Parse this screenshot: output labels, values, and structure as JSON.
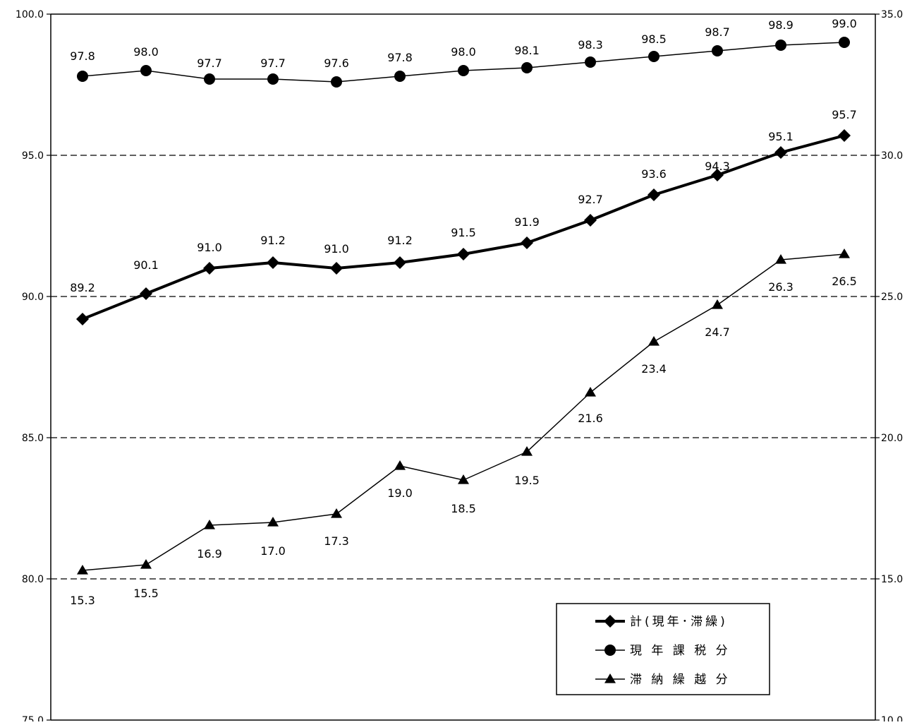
{
  "chart_data": {
    "type": "line",
    "title": "",
    "xlabel": "",
    "ylabel": "",
    "categories": [
      "",
      "",
      "",
      "",
      "",
      "",
      "",
      "",
      "",
      "",
      "",
      "",
      ""
    ],
    "ylim_left": [
      75.0,
      100.0
    ],
    "ylim_right": [
      10.0,
      35.0
    ],
    "yticks_left": [
      "75.0",
      "80.0",
      "85.0",
      "90.0",
      "95.0",
      "100.0"
    ],
    "yticks_right": [
      "10.0",
      "15.0",
      "20.0",
      "25.0",
      "30.0",
      "35.0"
    ],
    "grid": "dashed horizontal at 80, 85, 90, 95",
    "legend_position": "bottom-right",
    "series": [
      {
        "name": "計(現年･滞繰)",
        "axis": "left",
        "marker": "diamond",
        "line": "thick",
        "values": [
          89.2,
          90.1,
          91.0,
          91.2,
          91.0,
          91.2,
          91.5,
          91.9,
          92.7,
          93.6,
          94.3,
          95.1,
          95.7
        ],
        "labels": [
          "89.2",
          "90.1",
          "91.0",
          "91.2",
          "91.0",
          "91.2",
          "91.5",
          "91.9",
          "92.7",
          "93.6",
          "94.3",
          "95.1",
          "95.7"
        ]
      },
      {
        "name": "現 年 課 税 分",
        "axis": "left",
        "marker": "circle",
        "line": "thin",
        "values": [
          97.8,
          98.0,
          97.7,
          97.7,
          97.6,
          97.8,
          98.0,
          98.1,
          98.3,
          98.5,
          98.7,
          98.9,
          99.0
        ],
        "labels": [
          "97.8",
          "98.0",
          "97.7",
          "97.7",
          "97.6",
          "97.8",
          "98.0",
          "98.1",
          "98.3",
          "98.5",
          "98.7",
          "98.9",
          "99.0"
        ]
      },
      {
        "name": "滞 納 繰 越 分",
        "axis": "right",
        "marker": "triangle",
        "line": "thin",
        "values": [
          15.3,
          15.5,
          16.9,
          17.0,
          17.3,
          19.0,
          18.5,
          19.5,
          21.6,
          23.4,
          24.7,
          26.3,
          26.5
        ],
        "labels": [
          "15.3",
          "15.5",
          "16.9",
          "17.0",
          "17.3",
          "19.0",
          "18.5",
          "19.5",
          "21.6",
          "23.4",
          "24.7",
          "26.3",
          "26.5"
        ]
      }
    ]
  }
}
